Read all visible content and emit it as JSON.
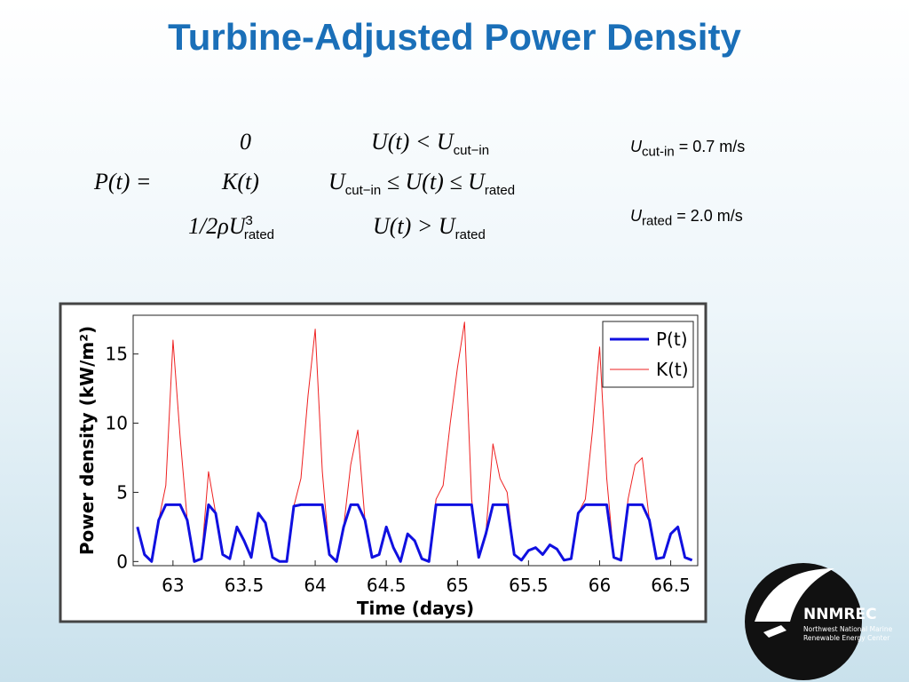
{
  "title": "Turbine-Adjusted Power Density",
  "equation": {
    "lhs": [
      {
        "text": "P(t) ="
      }
    ],
    "cases": [
      {
        "value": [
          {
            "text": "0"
          }
        ],
        "condition": [
          {
            "text": "U(t) < U"
          },
          {
            "sub": "cut−in"
          }
        ]
      },
      {
        "value": [
          {
            "text": "K(t)"
          }
        ],
        "condition": [
          {
            "text": "U"
          },
          {
            "sub": "cut−in"
          },
          {
            "text": " ≤ U(t) ≤ U"
          },
          {
            "sub": "rated"
          }
        ]
      },
      {
        "value": [
          {
            "text": "1/2ρU"
          },
          {
            "sup": "3"
          },
          {
            "sub": "rated"
          }
        ],
        "condition": [
          {
            "text": "U(t) > U"
          },
          {
            "sub": "rated"
          }
        ]
      }
    ]
  },
  "notes": [
    [
      {
        "text": "U"
      },
      {
        "sub": "cut-in"
      },
      {
        "text": " = 0.7 m/s"
      }
    ],
    [
      {
        "text": "U"
      },
      {
        "sub": "rated"
      },
      {
        "text": " = 2.0 m/s"
      }
    ]
  ],
  "logo": {
    "name": "NNMREC",
    "line1": "Northwest National Marine",
    "line2": "Renewable Energy Center"
  },
  "chart_data": {
    "type": "line",
    "x_label": "Time (days)",
    "y_label": "Power density (kW/m²)",
    "xlim": [
      62.72,
      66.69
    ],
    "ylim": [
      -0.3,
      17.8
    ],
    "xticks": [
      63,
      63.5,
      64,
      64.5,
      65,
      65.5,
      66,
      66.5
    ],
    "yticks": [
      0,
      5,
      10,
      15
    ],
    "legend": "upper right",
    "x": [
      62.75,
      62.8,
      62.85,
      62.9,
      62.95,
      63,
      63.05,
      63.1,
      63.15,
      63.2,
      63.25,
      63.3,
      63.35,
      63.4,
      63.45,
      63.5,
      63.55,
      63.6,
      63.65,
      63.7,
      63.75,
      63.8,
      63.85,
      63.9,
      63.95,
      64,
      64.05,
      64.1,
      64.15,
      64.2,
      64.25,
      64.3,
      64.35,
      64.4,
      64.45,
      64.5,
      64.55,
      64.6,
      64.65,
      64.7,
      64.75,
      64.8,
      64.85,
      64.9,
      64.95,
      65,
      65.05,
      65.1,
      65.15,
      65.2,
      65.25,
      65.3,
      65.35,
      65.4,
      65.45,
      65.5,
      65.55,
      65.6,
      65.65,
      65.7,
      65.75,
      65.8,
      65.85,
      65.9,
      65.95,
      66,
      66.05,
      66.1,
      66.15,
      66.2,
      66.25,
      66.3,
      66.35,
      66.4,
      66.45,
      66.5,
      66.55,
      66.6,
      66.65
    ],
    "series": [
      {
        "name": "P(t)",
        "color": "#1010e0",
        "width": 3,
        "values": [
          2.5,
          0.5,
          0,
          3,
          4.1,
          4.1,
          4.1,
          3,
          0,
          0.2,
          4.1,
          3.5,
          0.5,
          0.2,
          2.5,
          1.5,
          0.3,
          3.5,
          2.8,
          0.3,
          0,
          0,
          4,
          4.1,
          4.1,
          4.1,
          4.1,
          0.5,
          0,
          2.5,
          4.1,
          4.1,
          3,
          0.3,
          0.5,
          2.5,
          1,
          0,
          2,
          1.5,
          0.2,
          0,
          4.1,
          4.1,
          4.1,
          4.1,
          4.1,
          4.1,
          0.3,
          2,
          4.1,
          4.1,
          4.1,
          0.5,
          0.1,
          0.8,
          1,
          0.5,
          1.2,
          0.9,
          0.1,
          0.2,
          3.5,
          4.1,
          4.1,
          4.1,
          4.1,
          0.3,
          0.1,
          4.1,
          4.1,
          4.1,
          3,
          0.2,
          0.3,
          2,
          2.5,
          0.3,
          0.1
        ]
      },
      {
        "name": "K(t)",
        "color": "#ee2020",
        "width": 1,
        "values": [
          2.5,
          0.5,
          0,
          3,
          5.5,
          16,
          9,
          3,
          0,
          0.2,
          6.5,
          3.5,
          0.5,
          0.2,
          2.5,
          1.5,
          0.3,
          3.5,
          2.8,
          0.3,
          0,
          0,
          4,
          6,
          12,
          16.8,
          6.5,
          0.5,
          0,
          2.5,
          7,
          9.5,
          3,
          0.3,
          0.5,
          2.5,
          1,
          0,
          2,
          1.5,
          0.2,
          0,
          4.5,
          5.5,
          10,
          14,
          17.3,
          4.5,
          0.3,
          2,
          8.5,
          6,
          5,
          0.5,
          0.1,
          0.8,
          1,
          0.5,
          1.2,
          0.9,
          0.1,
          0.2,
          3.5,
          4.5,
          9.5,
          15.5,
          6,
          0.3,
          0.1,
          4.5,
          7,
          7.5,
          3,
          0.2,
          0.3,
          2,
          2.5,
          0.3,
          0.1
        ]
      }
    ]
  }
}
